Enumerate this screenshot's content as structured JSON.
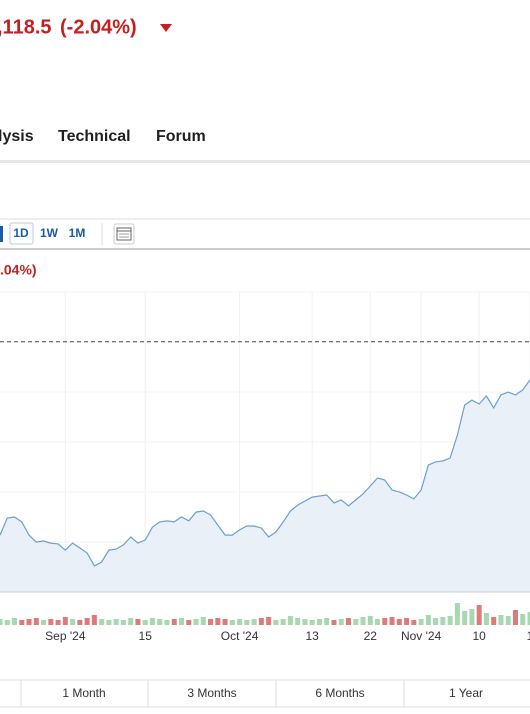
{
  "header": {
    "price": ",118.5",
    "change": "(-2.04%)"
  },
  "tabs": [
    "lysis",
    "Technical",
    "Forum"
  ],
  "toolbar": [
    "1D",
    "1W",
    "1M"
  ],
  "chart_change": ".04%)",
  "ranges": [
    "1 Month",
    "3 Months",
    "6 Months",
    "1 Year"
  ],
  "chart_data": {
    "type": "area",
    "line_color": "#6a9fd1",
    "fill_color": "#e9f0f8",
    "reference_line": 1141.8,
    "ylim": [
      1020,
      1166
    ],
    "values": [
      1047.7,
      1056.0,
      1056.5,
      1054.1,
      1047.7,
      1044.3,
      1044.8,
      1043.8,
      1043.4,
      1040.4,
      1043.8,
      1041.4,
      1039.0,
      1032.7,
      1034.6,
      1040.4,
      1040.9,
      1042.9,
      1046.8,
      1043.8,
      1045.3,
      1051.6,
      1054.1,
      1054.6,
      1054.1,
      1056.5,
      1054.6,
      1058.9,
      1059.4,
      1057.5,
      1052.6,
      1047.7,
      1047.7,
      1050.2,
      1052.1,
      1052.1,
      1051.1,
      1046.8,
      1049.2,
      1054.1,
      1059.4,
      1062.3,
      1064.3,
      1066.2,
      1066.7,
      1067.2,
      1063.3,
      1064.8,
      1061.9,
      1064.8,
      1067.7,
      1071.6,
      1075.5,
      1074.5,
      1069.6,
      1068.7,
      1067.2,
      1065.3,
      1069.6,
      1081.8,
      1083.3,
      1083.8,
      1085.2,
      1096.4,
      1111.0,
      1113.4,
      1111.5,
      1115.4,
      1109.6,
      1115.9,
      1117.3,
      1115.9,
      1118.3,
      1123.2
    ],
    "volume": {
      "up_color": "#a8d8b0",
      "down_color": "#e07a7a",
      "ylim": [
        0,
        30
      ],
      "values": [
        6,
        5,
        7,
        5,
        6,
        7,
        5,
        6,
        5,
        8,
        6,
        5,
        7,
        10,
        6,
        5,
        6,
        5,
        7,
        6,
        5,
        7,
        6,
        5,
        6,
        7,
        5,
        6,
        8,
        6,
        7,
        6,
        5,
        6,
        5,
        6,
        7,
        8,
        5,
        6,
        9,
        7,
        6,
        5,
        6,
        7,
        5,
        6,
        7,
        6,
        8,
        9,
        6,
        7,
        8,
        6,
        7,
        5,
        6,
        10,
        7,
        8,
        9,
        22,
        14,
        16,
        20,
        12,
        8,
        10,
        9,
        15,
        11,
        13
      ]
    },
    "xticks": [
      {
        "value": 9,
        "label": "Sep '24"
      },
      {
        "value": 20,
        "label": "15"
      },
      {
        "value": 33,
        "label": "Oct '24"
      },
      {
        "value": 43,
        "label": "13"
      },
      {
        "value": 51,
        "label": "22"
      },
      {
        "value": 58,
        "label": "Nov '24"
      },
      {
        "value": 66,
        "label": "10"
      },
      {
        "value": 73,
        "label": "1"
      }
    ]
  }
}
